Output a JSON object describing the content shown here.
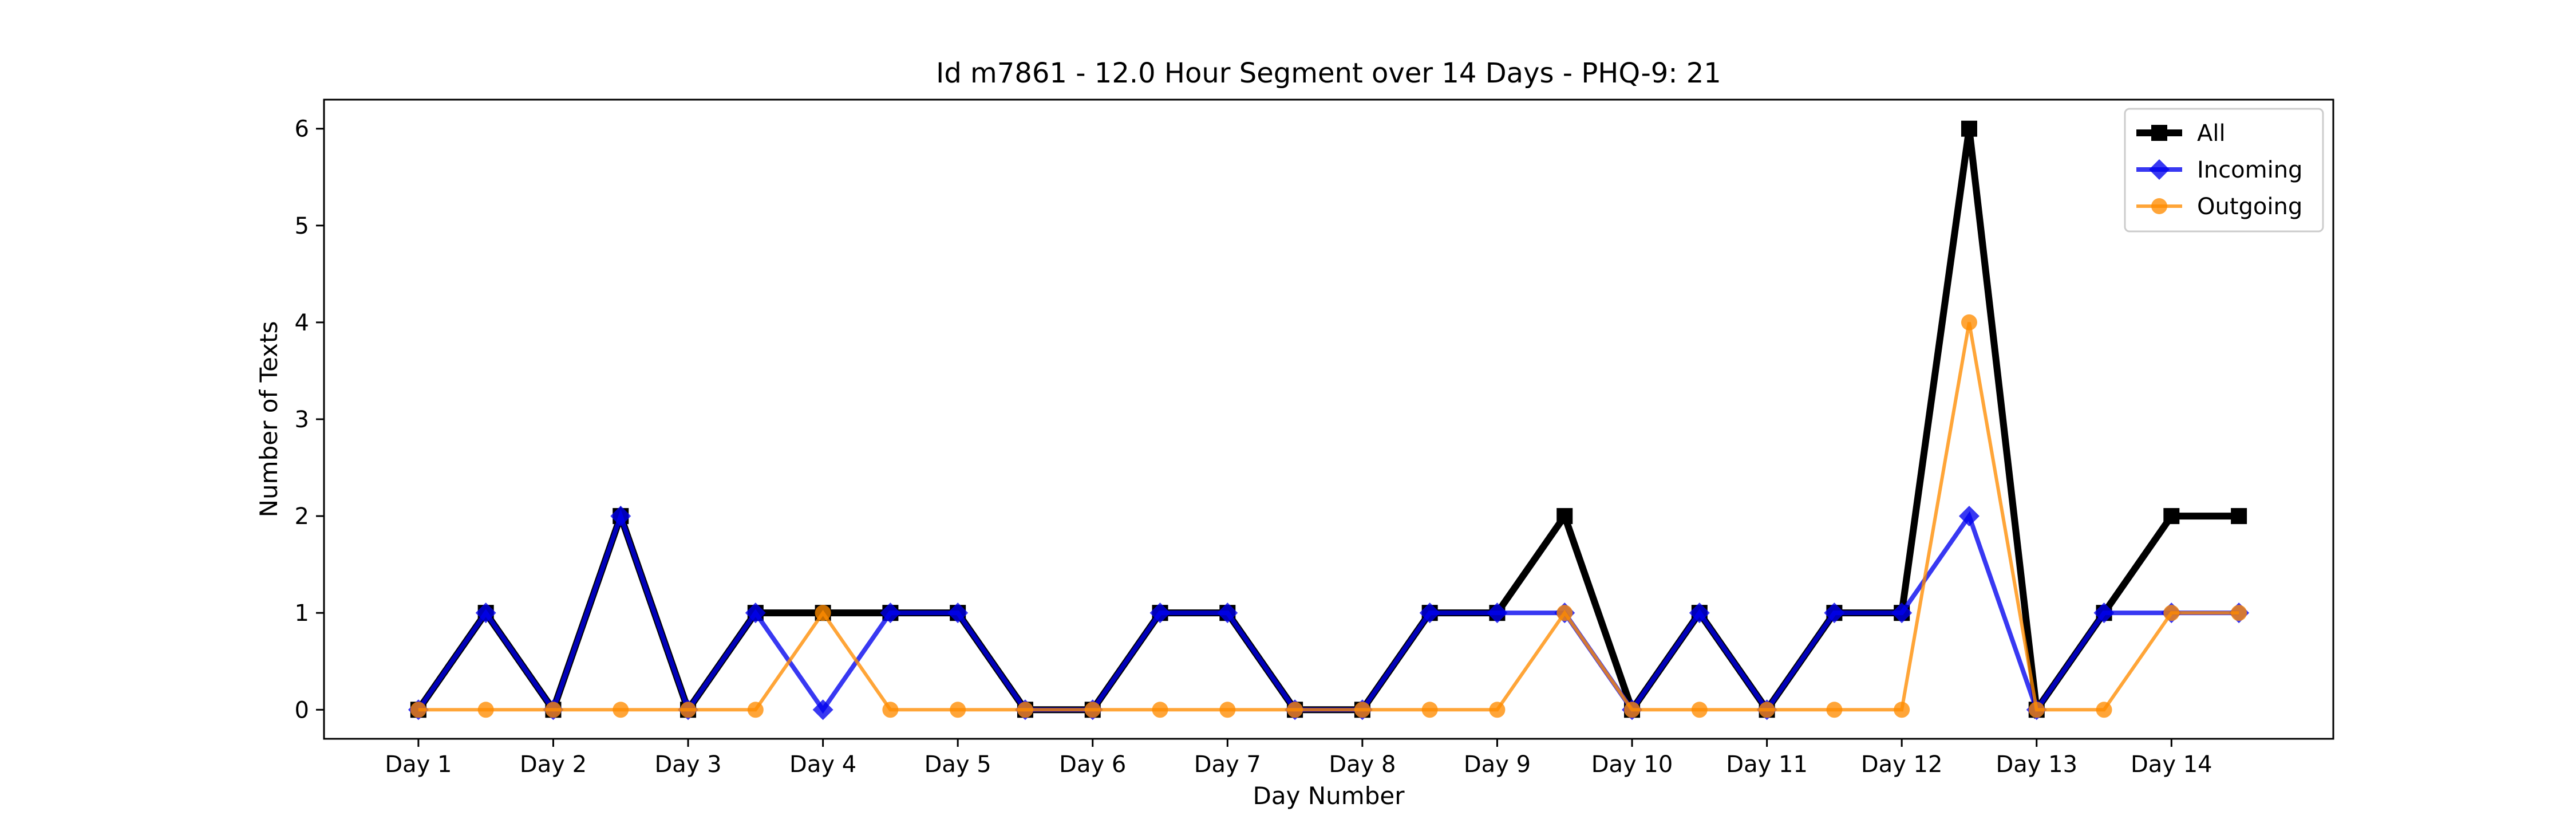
{
  "chart_data": {
    "type": "line",
    "title": "Id m7861 - 12.0 Hour Segment over 14 Days - PHQ-9: 21",
    "xlabel": "Day Number",
    "ylabel": "Number of Texts",
    "x": [
      1,
      1.5,
      2,
      2.5,
      3,
      3.5,
      4,
      4.5,
      5,
      5.5,
      6,
      6.5,
      7,
      7.5,
      8,
      8.5,
      9,
      9.5,
      10,
      10.5,
      11,
      11.5,
      12,
      12.5,
      13,
      13.5,
      14,
      14.5
    ],
    "xticks": [
      1,
      2,
      3,
      4,
      5,
      6,
      7,
      8,
      9,
      10,
      11,
      12,
      13,
      14
    ],
    "xtick_labels": [
      "Day 1",
      "Day 2",
      "Day 3",
      "Day 4",
      "Day 5",
      "Day 6",
      "Day 7",
      "Day 8",
      "Day 9",
      "Day 10",
      "Day 11",
      "Day 12",
      "Day 13",
      "Day 14"
    ],
    "yticks": [
      0,
      1,
      2,
      3,
      4,
      5,
      6
    ],
    "ytick_labels": [
      "0",
      "1",
      "2",
      "3",
      "4",
      "5",
      "6"
    ],
    "xlim": [
      0.3,
      15.2
    ],
    "ylim": [
      -0.3,
      6.3
    ],
    "grid": false,
    "legend_position": "upper right",
    "series": [
      {
        "name": "All",
        "color": "#000000",
        "marker": "square",
        "values": [
          0,
          1,
          0,
          2,
          0,
          1,
          1,
          1,
          1,
          0,
          0,
          1,
          1,
          0,
          0,
          1,
          1,
          2,
          0,
          1,
          0,
          1,
          1,
          6,
          0,
          1,
          2,
          2
        ]
      },
      {
        "name": "Incoming",
        "color": "#0000ee",
        "marker": "diamond",
        "values": [
          0,
          1,
          0,
          2,
          0,
          1,
          0,
          1,
          1,
          0,
          0,
          1,
          1,
          0,
          0,
          1,
          1,
          1,
          0,
          1,
          0,
          1,
          1,
          2,
          0,
          1,
          1,
          1
        ]
      },
      {
        "name": "Outgoing",
        "color": "#ff8c00",
        "marker": "circle",
        "values": [
          0,
          0,
          0,
          0,
          0,
          0,
          1,
          0,
          0,
          0,
          0,
          0,
          0,
          0,
          0,
          0,
          0,
          1,
          0,
          0,
          0,
          0,
          0,
          4,
          0,
          0,
          1,
          1
        ]
      }
    ]
  }
}
